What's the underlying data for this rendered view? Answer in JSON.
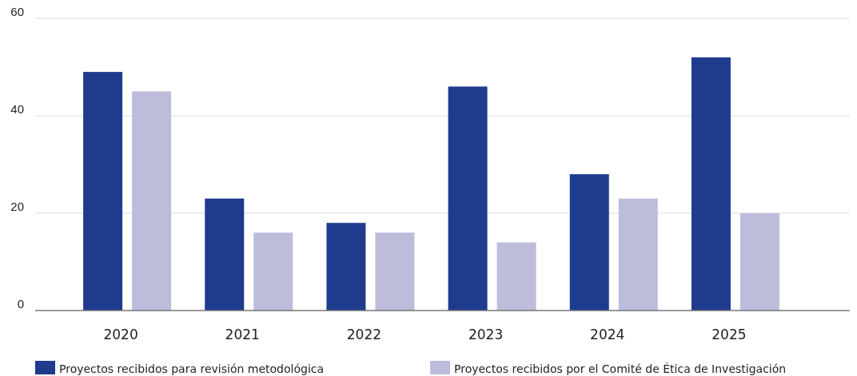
{
  "chart_data": {
    "type": "bar",
    "categories": [
      "2020",
      "2021",
      "2022",
      "2023",
      "2024",
      "2025"
    ],
    "series": [
      {
        "name": "Proyectos recibidos para revisión metodológica",
        "color": "#1f3b8e",
        "values": [
          49,
          23,
          18,
          46,
          28,
          52
        ]
      },
      {
        "name": "Proyectos recibidos por el Comité de Ética de Investigación",
        "color": "#bdbcdb",
        "values": [
          45,
          16,
          16,
          14,
          23,
          20
        ]
      }
    ],
    "ylim": [
      0,
      60
    ],
    "yticks": [
      0,
      20,
      40,
      60
    ],
    "grid": "y",
    "legend": "bottom"
  }
}
